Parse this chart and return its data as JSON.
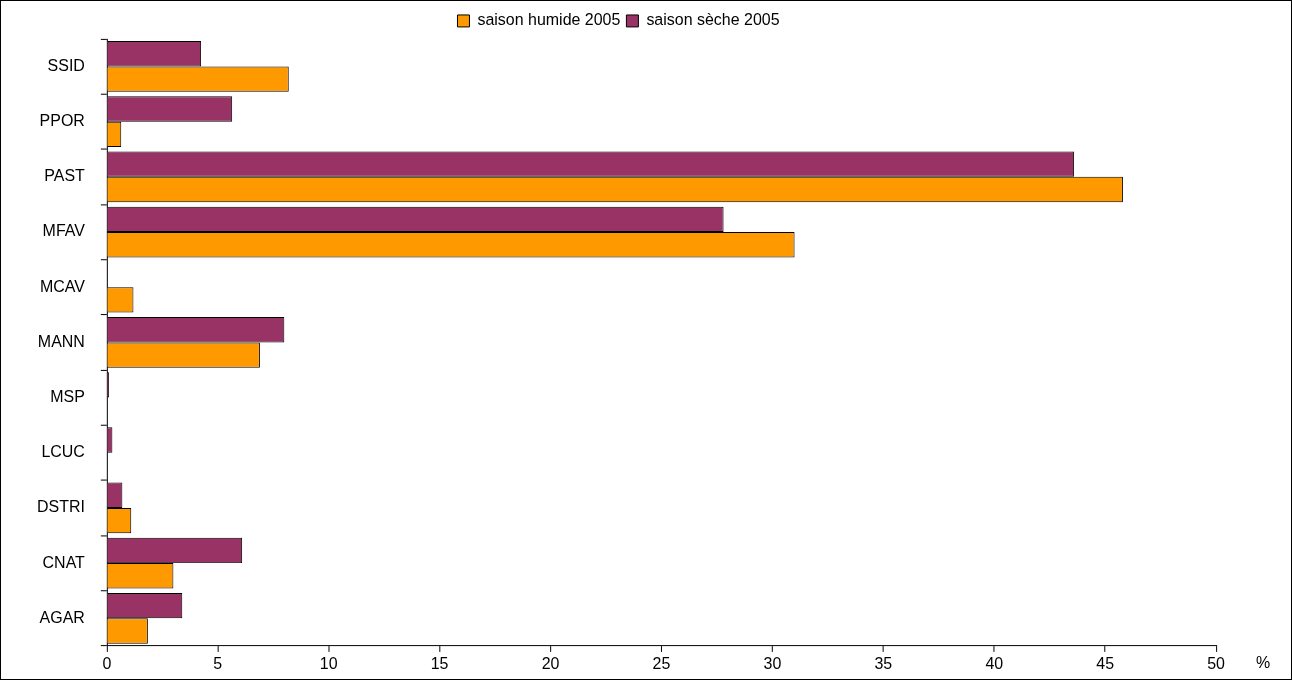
{
  "chart_data": {
    "type": "bar",
    "orientation": "horizontal",
    "xlabel": "%",
    "categories": [
      "SSID",
      "PPOR",
      "PAST",
      "MFAV",
      "MCAV",
      "MANN",
      "MSP",
      "LCUC",
      "DSTRI",
      "CNAT",
      "AGAR"
    ],
    "series": [
      {
        "name": "saison sèche 2005",
        "color": "#993366",
        "values": [
          4.25,
          5.65,
          43.6,
          27.8,
          0,
          8.0,
          0.1,
          0.25,
          0.7,
          6.1,
          3.4
        ]
      },
      {
        "name": "saison humide 2005",
        "color": "#ff9900",
        "values": [
          8.2,
          0.65,
          45.8,
          31.0,
          1.2,
          6.9,
          0,
          0,
          1.1,
          3.0,
          1.85
        ]
      }
    ],
    "xlim": [
      0,
      50
    ],
    "xticks": [
      0,
      5,
      10,
      15,
      20,
      25,
      30,
      35,
      40,
      45,
      50
    ],
    "grid": false,
    "legend": "top"
  }
}
